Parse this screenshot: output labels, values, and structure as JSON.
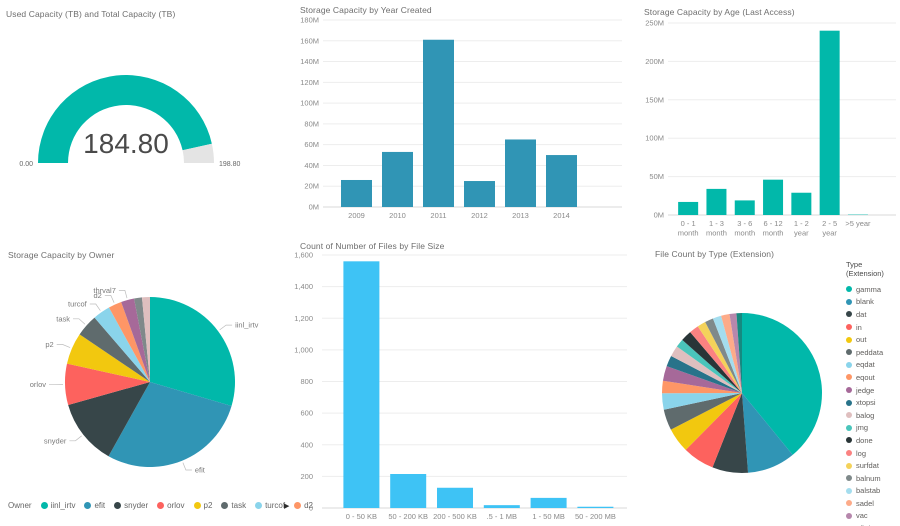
{
  "background": "#FFFFFF",
  "icons": {
    "legend_overflow": "▶"
  },
  "chart_data": [
    {
      "id": "used-capacity-gauge",
      "type": "gauge",
      "title": "Used Capacity (TB) and Total Capacity (TB)",
      "value": 184.8,
      "min": 0.0,
      "max": 198.8,
      "value_label": "184.80",
      "min_label": "0.00",
      "max_label": "198.80",
      "color": "#01B8AA",
      "track_color": "#E4E4E4"
    },
    {
      "id": "storage-by-year",
      "type": "bar",
      "title": "Storage Capacity by Year Created",
      "categories": [
        "2009",
        "2010",
        "2011",
        "2012",
        "2013",
        "2014"
      ],
      "values": [
        26,
        53,
        161,
        25,
        65,
        50
      ],
      "unit": "M",
      "ylim": [
        0,
        180
      ],
      "yticks": [
        "0M",
        "20M",
        "40M",
        "60M",
        "80M",
        "100M",
        "120M",
        "140M",
        "160M",
        "180M"
      ],
      "color": "#3095B5",
      "grid": true
    },
    {
      "id": "storage-by-age",
      "type": "bar",
      "title": "Storage Capacity by Age (Last Access)",
      "categories": [
        "0 - 1\nmonth",
        "1 - 3\nmonth",
        "3 - 6\nmonth",
        "6 - 12\nmonth",
        "1 - 2\nyear",
        "2 - 5\nyear",
        ">5 year"
      ],
      "values": [
        17,
        34,
        19,
        46,
        29,
        240,
        0.5
      ],
      "unit": "M",
      "ylim": [
        0,
        250
      ],
      "yticks": [
        "0M",
        "50M",
        "100M",
        "150M",
        "200M",
        "250M"
      ],
      "color": "#01B8AA",
      "grid": true
    },
    {
      "id": "storage-by-owner",
      "type": "pie",
      "title": "Storage Capacity by Owner",
      "slices": [
        {
          "label": "iinl_irtv",
          "value": 29.5,
          "color": "#01B8AA"
        },
        {
          "label": "efit",
          "value": 28.5,
          "color": "#3095B5"
        },
        {
          "label": "snyder",
          "value": 12.5,
          "color": "#374649"
        },
        {
          "label": "orlov",
          "value": 7.8,
          "color": "#FD625E"
        },
        {
          "label": "p2",
          "value": 6.0,
          "color": "#F2C80F"
        },
        {
          "label": "task",
          "value": 4.2,
          "color": "#5F6B6D"
        },
        {
          "label": "turcof",
          "value": 3.3,
          "color": "#8AD4EB"
        },
        {
          "label": "d2",
          "value": 2.5,
          "color": "#FE9666"
        },
        {
          "label": "thrval7",
          "value": 2.5,
          "color": "#A66999"
        },
        {
          "label": "",
          "value": 1.5,
          "color": "#7F898A"
        },
        {
          "label": "",
          "value": 1.5,
          "color": "#DFBFBF"
        }
      ],
      "legend": {
        "title": "Owner",
        "position": "bottom",
        "items": [
          "iinl_irtv",
          "efit",
          "snyder",
          "orlov",
          "p2",
          "task",
          "turcof",
          "d2"
        ]
      }
    },
    {
      "id": "files-by-size",
      "type": "bar",
      "title": "Count of Number of Files by File Size",
      "categories": [
        "0 - 50 KB",
        "50 - 200 KB",
        "200 - 500 KB",
        ".5 - 1 MB",
        "1 - 50 MB",
        "50 - 200 MB"
      ],
      "values": [
        1560,
        215,
        128,
        18,
        64,
        8
      ],
      "ylim": [
        0,
        1600
      ],
      "yticks": [
        "0",
        "200",
        "400",
        "600",
        "800",
        "1,000",
        "1,200",
        "1,400",
        "1,600"
      ],
      "color": "#3EC3F5",
      "grid": true
    },
    {
      "id": "files-by-type",
      "type": "pie",
      "title": "File Count by Type (Extension)",
      "slices": [
        {
          "label": "gamma",
          "value": 39.0,
          "color": "#01B8AA"
        },
        {
          "label": "blank",
          "value": 9.7,
          "color": "#3095B5"
        },
        {
          "label": "dat",
          "value": 7.2,
          "color": "#374649"
        },
        {
          "label": "in",
          "value": 6.4,
          "color": "#FD625E"
        },
        {
          "label": "out",
          "value": 5.0,
          "color": "#F2C80F"
        },
        {
          "label": "peddata",
          "value": 4.2,
          "color": "#5F6B6D"
        },
        {
          "label": "eqdat",
          "value": 3.3,
          "color": "#8AD4EB"
        },
        {
          "label": "eqout",
          "value": 2.5,
          "color": "#FE9666"
        },
        {
          "label": "jedge",
          "value": 3.0,
          "color": "#A66999"
        },
        {
          "label": "xtopsi",
          "value": 2.2,
          "color": "#28738A"
        },
        {
          "label": "balog",
          "value": 2.2,
          "color": "#DFBFBF"
        },
        {
          "label": "jmg",
          "value": 1.7,
          "color": "#4AC5BB"
        },
        {
          "label": "done",
          "value": 2.2,
          "color": "#293537"
        },
        {
          "label": "log",
          "value": 1.9,
          "color": "#FB8281"
        },
        {
          "label": "surfdat",
          "value": 1.7,
          "color": "#F4D25A"
        },
        {
          "label": "balnum",
          "value": 1.7,
          "color": "#7F898A"
        },
        {
          "label": "balstab",
          "value": 1.7,
          "color": "#A4DDEE"
        },
        {
          "label": "sadel",
          "value": 1.7,
          "color": "#FDAB89"
        },
        {
          "label": "vac",
          "value": 1.4,
          "color": "#B687AC"
        },
        {
          "label": "efitdat",
          "value": 1.1,
          "color": "#168980"
        }
      ],
      "legend": {
        "title": "Type (Extension)",
        "position": "right"
      }
    }
  ]
}
